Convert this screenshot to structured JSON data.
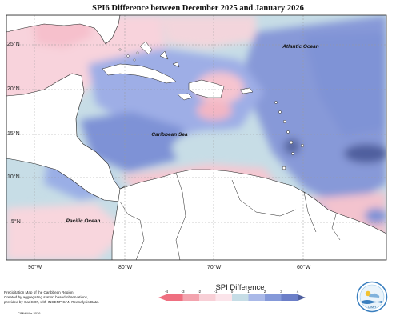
{
  "title": "SPI6 Difference between December 2025 and January 2026",
  "labels": {
    "atlantic": "Atlantic Ocean",
    "caribbean": "Caribbean Sea",
    "pacific": "Pacific Ocean"
  },
  "lat_ticks": [
    "25°N",
    "20°N",
    "15°N",
    "10°N",
    "5°N"
  ],
  "lon_ticks": [
    "90°W",
    "80°W",
    "70°W",
    "60°W"
  ],
  "legend": {
    "title": "SPI Difference",
    "ticks": [
      "-4",
      "-3",
      "-2",
      "-1",
      "0",
      "1",
      "2",
      "3",
      "4"
    ],
    "colors": [
      "#ef6f80",
      "#f3a3ae",
      "#f8cfd6",
      "#fbe4ea",
      "#c6dde6",
      "#aab9e8",
      "#8599d9",
      "#6c7fc8",
      "#4f5f9e"
    ]
  },
  "notes": [
    "Precipitation Map of the Caribbean Region.",
    "Created by aggregating station based observations,",
    "provided by CariCOF, with INCERPICAN Reanalysis Data."
  ],
  "credit": "CIMH Mar-2026",
  "logo_text": "CIMH"
}
